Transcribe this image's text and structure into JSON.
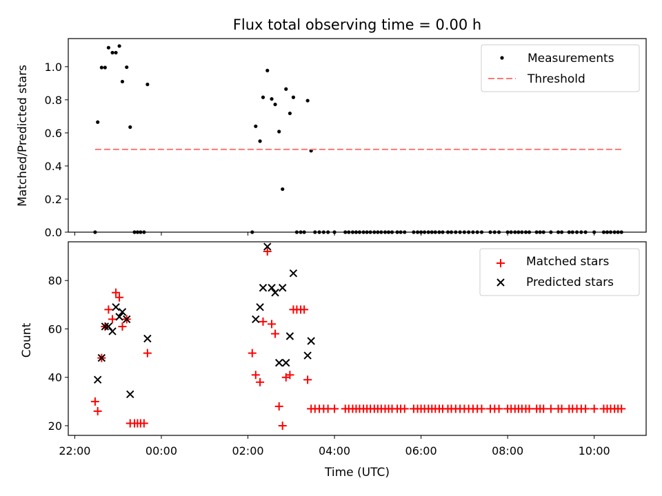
{
  "title": "Flux total observing time = 0.00 h",
  "chart_data": [
    {
      "type": "scatter",
      "ylabel": "Matched/Predicted stars",
      "ylim": [
        0,
        1.17
      ],
      "xlim_hours": [
        21.85,
        35.2
      ],
      "yticks": [
        0.0,
        0.2,
        0.4,
        0.6,
        0.8,
        1.0
      ],
      "ytick_labels": [
        "0.0",
        "0.2",
        "0.4",
        "0.6",
        "0.8",
        "1.0"
      ],
      "legend_position": "top-right",
      "series": [
        {
          "name": "Measurements",
          "color": "#000000",
          "marker": "dot",
          "points": [
            [
              22.47,
              0.0
            ],
            [
              22.53,
              0.665
            ],
            [
              22.62,
              0.995
            ],
            [
              22.7,
              0.995
            ],
            [
              22.78,
              1.115
            ],
            [
              22.87,
              1.085
            ],
            [
              22.95,
              1.085
            ],
            [
              23.03,
              1.125
            ],
            [
              23.1,
              0.91
            ],
            [
              23.2,
              0.997
            ],
            [
              23.28,
              0.635
            ],
            [
              23.38,
              0.0
            ],
            [
              23.45,
              0.0
            ],
            [
              23.52,
              0.0
            ],
            [
              23.6,
              0.0
            ],
            [
              23.68,
              0.893
            ],
            [
              26.1,
              0.0
            ],
            [
              26.18,
              0.64
            ],
            [
              26.28,
              0.55
            ],
            [
              26.35,
              0.815
            ],
            [
              26.45,
              0.977
            ],
            [
              26.55,
              0.805
            ],
            [
              26.63,
              0.772
            ],
            [
              26.72,
              0.608
            ],
            [
              26.8,
              0.26
            ],
            [
              26.88,
              0.865
            ],
            [
              26.97,
              0.718
            ],
            [
              27.05,
              0.815
            ],
            [
              27.13,
              0.0
            ],
            [
              27.22,
              0.0
            ],
            [
              27.3,
              0.0
            ],
            [
              27.38,
              0.795
            ],
            [
              27.46,
              0.492
            ],
            [
              27.55,
              0.0
            ],
            [
              27.65,
              0.0
            ],
            [
              27.75,
              0.0
            ],
            [
              27.85,
              0.0
            ],
            [
              28.0,
              0.0
            ],
            [
              28.25,
              0.0
            ],
            [
              28.33,
              0.0
            ],
            [
              28.42,
              0.0
            ],
            [
              28.5,
              0.0
            ],
            [
              28.58,
              0.0
            ],
            [
              28.67,
              0.0
            ],
            [
              28.75,
              0.0
            ],
            [
              28.83,
              0.0
            ],
            [
              28.92,
              0.0
            ],
            [
              29.0,
              0.0
            ],
            [
              29.08,
              0.0
            ],
            [
              29.17,
              0.0
            ],
            [
              29.25,
              0.0
            ],
            [
              29.33,
              0.0
            ],
            [
              29.45,
              0.0
            ],
            [
              29.53,
              0.0
            ],
            [
              29.62,
              0.0
            ],
            [
              29.83,
              0.0
            ],
            [
              29.92,
              0.0
            ],
            [
              30.0,
              0.0
            ],
            [
              30.08,
              0.0
            ],
            [
              30.17,
              0.0
            ],
            [
              30.25,
              0.0
            ],
            [
              30.33,
              0.0
            ],
            [
              30.42,
              0.0
            ],
            [
              30.5,
              0.0
            ],
            [
              30.62,
              0.0
            ],
            [
              30.7,
              0.0
            ],
            [
              30.8,
              0.0
            ],
            [
              30.9,
              0.0
            ],
            [
              31.0,
              0.0
            ],
            [
              31.1,
              0.0
            ],
            [
              31.2,
              0.0
            ],
            [
              31.3,
              0.0
            ],
            [
              31.4,
              0.0
            ],
            [
              31.6,
              0.0
            ],
            [
              31.7,
              0.0
            ],
            [
              31.8,
              0.0
            ],
            [
              32.0,
              0.0
            ],
            [
              32.08,
              0.0
            ],
            [
              32.17,
              0.0
            ],
            [
              32.25,
              0.0
            ],
            [
              32.33,
              0.0
            ],
            [
              32.42,
              0.0
            ],
            [
              32.5,
              0.0
            ],
            [
              32.67,
              0.0
            ],
            [
              32.75,
              0.0
            ],
            [
              32.83,
              0.0
            ],
            [
              33.0,
              0.0
            ],
            [
              33.17,
              0.0
            ],
            [
              33.25,
              0.0
            ],
            [
              33.42,
              0.0
            ],
            [
              33.5,
              0.0
            ],
            [
              33.6,
              0.0
            ],
            [
              33.7,
              0.0
            ],
            [
              33.8,
              0.0
            ],
            [
              34.0,
              0.0
            ],
            [
              34.22,
              0.0
            ],
            [
              34.3,
              0.0
            ],
            [
              34.38,
              0.0
            ],
            [
              34.47,
              0.0
            ],
            [
              34.55,
              0.0
            ],
            [
              34.63,
              0.0
            ]
          ]
        },
        {
          "name": "Threshold",
          "color": "#ff7777",
          "marker": "dashed-line",
          "points": [
            [
              22.47,
              0.5
            ],
            [
              34.63,
              0.5
            ]
          ]
        }
      ]
    },
    {
      "type": "scatter",
      "xlabel": "Time (UTC)",
      "ylabel": "Count",
      "ylim": [
        16,
        96
      ],
      "xlim_hours": [
        21.85,
        35.2
      ],
      "yticks": [
        20,
        40,
        60,
        80
      ],
      "ytick_labels": [
        "20",
        "40",
        "60",
        "80"
      ],
      "xticks_hours": [
        22,
        24,
        26,
        28,
        30,
        32,
        34
      ],
      "xtick_labels": [
        "22:00",
        "00:00",
        "02:00",
        "04:00",
        "06:00",
        "08:00",
        "10:00"
      ],
      "legend_position": "top-right",
      "series": [
        {
          "name": "Matched stars",
          "color": "#ff0000",
          "marker": "plus",
          "points": [
            [
              22.47,
              30
            ],
            [
              22.53,
              26
            ],
            [
              22.62,
              48
            ],
            [
              22.7,
              61
            ],
            [
              22.78,
              68
            ],
            [
              22.87,
              64
            ],
            [
              22.95,
              75
            ],
            [
              23.03,
              73
            ],
            [
              23.1,
              61
            ],
            [
              23.2,
              64
            ],
            [
              23.28,
              21
            ],
            [
              23.38,
              21
            ],
            [
              23.45,
              21
            ],
            [
              23.52,
              21
            ],
            [
              23.6,
              21
            ],
            [
              23.68,
              50
            ],
            [
              26.1,
              50
            ],
            [
              26.18,
              41
            ],
            [
              26.28,
              38
            ],
            [
              26.35,
              63
            ],
            [
              26.45,
              92
            ],
            [
              26.55,
              62
            ],
            [
              26.63,
              58
            ],
            [
              26.72,
              28
            ],
            [
              26.8,
              20
            ],
            [
              26.88,
              40
            ],
            [
              26.97,
              41
            ],
            [
              27.05,
              68
            ],
            [
              27.13,
              68
            ],
            [
              27.22,
              68
            ],
            [
              27.3,
              68
            ],
            [
              27.38,
              39
            ],
            [
              27.46,
              27
            ],
            [
              27.55,
              27
            ],
            [
              27.65,
              27
            ],
            [
              27.75,
              27
            ],
            [
              27.85,
              27
            ],
            [
              28.0,
              27
            ],
            [
              28.25,
              27
            ],
            [
              28.33,
              27
            ],
            [
              28.42,
              27
            ],
            [
              28.5,
              27
            ],
            [
              28.58,
              27
            ],
            [
              28.67,
              27
            ],
            [
              28.75,
              27
            ],
            [
              28.83,
              27
            ],
            [
              28.92,
              27
            ],
            [
              29.0,
              27
            ],
            [
              29.08,
              27
            ],
            [
              29.17,
              27
            ],
            [
              29.25,
              27
            ],
            [
              29.33,
              27
            ],
            [
              29.45,
              27
            ],
            [
              29.53,
              27
            ],
            [
              29.62,
              27
            ],
            [
              29.83,
              27
            ],
            [
              29.92,
              27
            ],
            [
              30.0,
              27
            ],
            [
              30.08,
              27
            ],
            [
              30.17,
              27
            ],
            [
              30.25,
              27
            ],
            [
              30.33,
              27
            ],
            [
              30.42,
              27
            ],
            [
              30.5,
              27
            ],
            [
              30.62,
              27
            ],
            [
              30.7,
              27
            ],
            [
              30.8,
              27
            ],
            [
              30.9,
              27
            ],
            [
              31.0,
              27
            ],
            [
              31.1,
              27
            ],
            [
              31.2,
              27
            ],
            [
              31.3,
              27
            ],
            [
              31.4,
              27
            ],
            [
              31.6,
              27
            ],
            [
              31.7,
              27
            ],
            [
              31.8,
              27
            ],
            [
              32.0,
              27
            ],
            [
              32.08,
              27
            ],
            [
              32.17,
              27
            ],
            [
              32.25,
              27
            ],
            [
              32.33,
              27
            ],
            [
              32.42,
              27
            ],
            [
              32.5,
              27
            ],
            [
              32.67,
              27
            ],
            [
              32.75,
              27
            ],
            [
              32.83,
              27
            ],
            [
              33.0,
              27
            ],
            [
              33.17,
              27
            ],
            [
              33.25,
              27
            ],
            [
              33.42,
              27
            ],
            [
              33.5,
              27
            ],
            [
              33.6,
              27
            ],
            [
              33.7,
              27
            ],
            [
              33.8,
              27
            ],
            [
              34.0,
              27
            ],
            [
              34.22,
              27
            ],
            [
              34.3,
              27
            ],
            [
              34.38,
              27
            ],
            [
              34.47,
              27
            ],
            [
              34.55,
              27
            ],
            [
              34.63,
              27
            ]
          ]
        },
        {
          "name": "Predicted stars",
          "color": "#000000",
          "marker": "x",
          "points": [
            [
              22.53,
              39
            ],
            [
              22.62,
              48
            ],
            [
              22.7,
              61
            ],
            [
              22.78,
              61
            ],
            [
              22.87,
              59
            ],
            [
              22.95,
              69
            ],
            [
              23.03,
              65
            ],
            [
              23.1,
              67
            ],
            [
              23.2,
              64
            ],
            [
              23.28,
              33
            ],
            [
              23.68,
              56
            ],
            [
              26.18,
              64
            ],
            [
              26.28,
              69
            ],
            [
              26.35,
              77
            ],
            [
              26.45,
              94
            ],
            [
              26.55,
              77
            ],
            [
              26.63,
              75
            ],
            [
              26.72,
              46
            ],
            [
              26.8,
              77
            ],
            [
              26.88,
              46
            ],
            [
              26.97,
              57
            ],
            [
              27.05,
              83
            ],
            [
              27.38,
              49
            ],
            [
              27.46,
              55
            ]
          ]
        }
      ]
    }
  ]
}
